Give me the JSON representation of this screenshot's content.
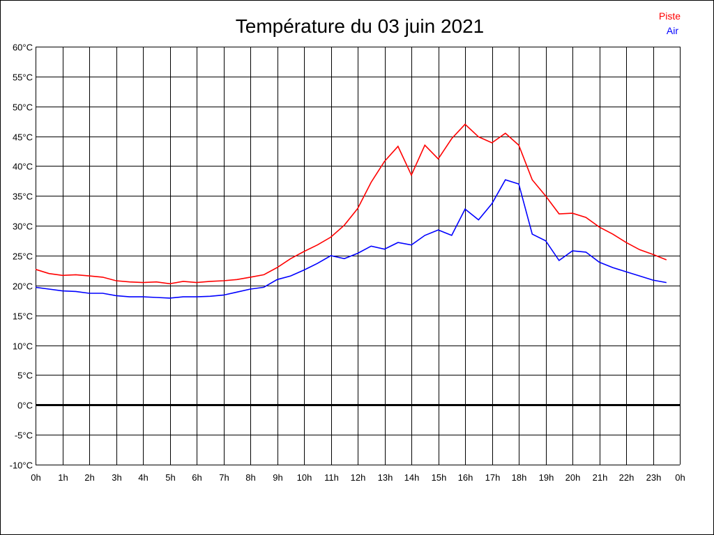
{
  "chart_data": {
    "type": "line",
    "title": "Température du 03 juin 2021",
    "xlabel": "",
    "ylabel": "",
    "grid": true,
    "legend_placement": "top-right",
    "xlim": [
      0,
      24
    ],
    "ylim": [
      -10,
      60
    ],
    "x_ticks": [
      0,
      1,
      2,
      3,
      4,
      5,
      6,
      7,
      8,
      9,
      10,
      11,
      12,
      13,
      14,
      15,
      16,
      17,
      18,
      19,
      20,
      21,
      22,
      23,
      24
    ],
    "x_tick_labels": [
      "0h",
      "1h",
      "2h",
      "3h",
      "4h",
      "5h",
      "6h",
      "7h",
      "8h",
      "9h",
      "10h",
      "11h",
      "12h",
      "13h",
      "14h",
      "15h",
      "16h",
      "17h",
      "18h",
      "19h",
      "20h",
      "21h",
      "22h",
      "23h",
      "0h"
    ],
    "y_ticks": [
      60,
      55,
      50,
      45,
      40,
      35,
      30,
      25,
      20,
      15,
      10,
      5,
      0,
      -5,
      -10
    ],
    "y_tick_labels": [
      "60°C",
      "55°C",
      "50°C",
      "45°C",
      "40°C",
      "35°C",
      "30°C",
      "25°C",
      "20°C",
      "15°C",
      "10°C",
      "5°C",
      "0°C",
      "-5°C",
      "-10°C"
    ],
    "x": [
      0,
      0.5,
      1,
      1.5,
      2,
      2.5,
      3,
      3.5,
      4,
      4.5,
      5,
      5.5,
      6,
      6.5,
      7,
      7.5,
      8,
      8.5,
      9,
      9.5,
      10,
      10.5,
      11,
      11.5,
      12,
      12.5,
      13,
      13.5,
      14,
      14.5,
      15,
      15.5,
      16,
      16.5,
      17,
      17.5,
      18,
      18.5,
      19,
      19.5,
      20,
      20.5,
      21,
      21.5,
      22,
      22.5,
      23,
      23.5
    ],
    "series": [
      {
        "name": "Piste",
        "color": "#ff0000",
        "values": [
          22.7,
          22.0,
          21.7,
          21.8,
          21.6,
          21.4,
          20.8,
          20.6,
          20.5,
          20.6,
          20.3,
          20.7,
          20.5,
          20.7,
          20.8,
          21.0,
          21.4,
          21.8,
          23.0,
          24.5,
          25.7,
          26.8,
          28.1,
          30.1,
          32.9,
          37.3,
          40.8,
          43.3,
          38.5,
          43.5,
          41.2,
          44.6,
          47.0,
          44.9,
          43.9,
          45.5,
          43.5,
          37.7,
          35.0,
          32.0,
          32.1,
          31.4,
          29.8,
          28.6,
          27.2,
          26.0,
          25.2,
          24.3
        ]
      },
      {
        "name": "Air",
        "color": "#0000ff",
        "values": [
          19.7,
          19.4,
          19.1,
          19.0,
          18.7,
          18.7,
          18.3,
          18.1,
          18.1,
          18.0,
          17.9,
          18.1,
          18.1,
          18.2,
          18.4,
          18.9,
          19.4,
          19.7,
          21.0,
          21.6,
          22.6,
          23.7,
          25.0,
          24.5,
          25.4,
          26.6,
          26.1,
          27.2,
          26.8,
          28.4,
          29.3,
          28.4,
          32.8,
          31.0,
          33.7,
          37.7,
          37.0,
          28.6,
          27.5,
          24.2,
          25.8,
          25.6,
          23.9,
          23.0,
          22.3,
          21.6,
          20.9,
          20.5
        ]
      }
    ]
  }
}
